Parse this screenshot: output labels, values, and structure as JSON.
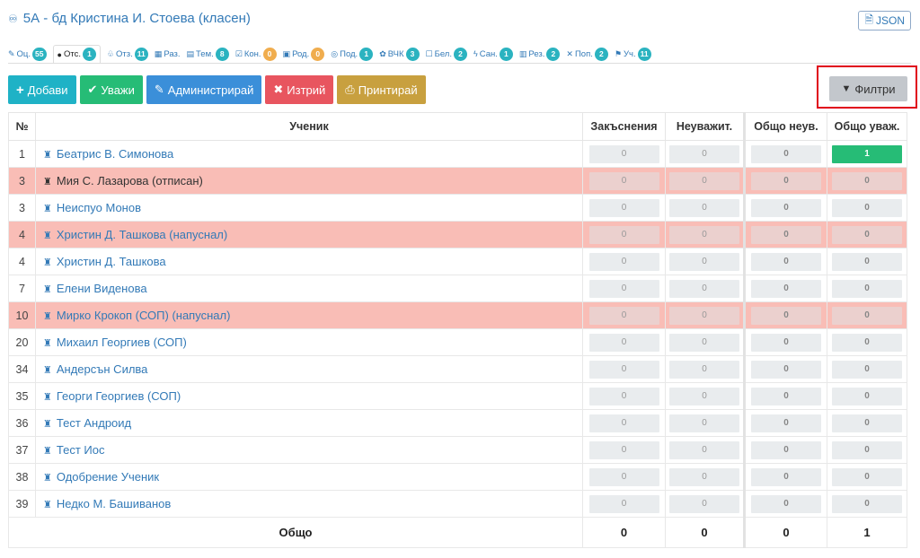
{
  "header": {
    "title": "5А - бд Кристина И. Стоева (класен)",
    "json_label": "JSON"
  },
  "tabs": [
    {
      "icon": "✎",
      "label": "Оц.",
      "badge": "55",
      "badge_color": "teal",
      "active": false
    },
    {
      "icon": "●",
      "label": "Отс.",
      "badge": "1",
      "badge_color": "teal",
      "active": true
    },
    {
      "icon": "♧",
      "label": "Отз.",
      "badge": "11",
      "badge_color": "teal",
      "active": false
    },
    {
      "icon": "▦",
      "label": "Раз.",
      "badge": "",
      "badge_color": "teal",
      "active": false
    },
    {
      "icon": "▤",
      "label": "Тем.",
      "badge": "8",
      "badge_color": "teal",
      "active": false
    },
    {
      "icon": "☑",
      "label": "Кон.",
      "badge": "0",
      "badge_color": "yellow",
      "active": false
    },
    {
      "icon": "▣",
      "label": "Род.",
      "badge": "0",
      "badge_color": "yellow",
      "active": false
    },
    {
      "icon": "◎",
      "label": "Под.",
      "badge": "1",
      "badge_color": "teal",
      "active": false
    },
    {
      "icon": "✿",
      "label": "ВЧК",
      "badge": "3",
      "badge_color": "teal",
      "active": false
    },
    {
      "icon": "☐",
      "label": "Бел.",
      "badge": "2",
      "badge_color": "teal",
      "active": false
    },
    {
      "icon": "ϟ",
      "label": "Сан.",
      "badge": "1",
      "badge_color": "teal",
      "active": false
    },
    {
      "icon": "▥",
      "label": "Рез.",
      "badge": "2",
      "badge_color": "teal",
      "active": false
    },
    {
      "icon": "✕",
      "label": "Поп.",
      "badge": "2",
      "badge_color": "teal",
      "active": false
    },
    {
      "icon": "⚑",
      "label": "Уч.",
      "badge": "11",
      "badge_color": "teal",
      "active": false
    }
  ],
  "toolbar": {
    "add": "Добави",
    "excuse": "Уважи",
    "admin": "Администрирай",
    "delete": "Изтрий",
    "print": "Принтирай",
    "filters": "Филтри"
  },
  "table": {
    "headers": {
      "num": "№",
      "student": "Ученик",
      "explanations": "Закъснения",
      "unexcused": "Неуважит.",
      "total_unexcused": "Общо неув.",
      "total_excused": "Общо уваж."
    },
    "rows": [
      {
        "num": "1",
        "name": "Беатрис В. Симонова",
        "pink": false,
        "dark": false,
        "v1": "0",
        "v2": "0",
        "v3": "0",
        "v4": "1",
        "v4_green": true
      },
      {
        "num": "3",
        "name": "Мия С. Лазарова (отписан)",
        "pink": true,
        "dark": true,
        "v1": "0",
        "v2": "0",
        "v3": "0",
        "v4": "0",
        "v4_green": false
      },
      {
        "num": "3",
        "name": "Неиспуо Монов",
        "pink": false,
        "dark": false,
        "v1": "0",
        "v2": "0",
        "v3": "0",
        "v4": "0",
        "v4_green": false
      },
      {
        "num": "4",
        "name": "Христин Д. Ташкова (напуснал)",
        "pink": true,
        "dark": false,
        "v1": "0",
        "v2": "0",
        "v3": "0",
        "v4": "0",
        "v4_green": false
      },
      {
        "num": "4",
        "name": "Христин Д. Ташкова",
        "pink": false,
        "dark": false,
        "v1": "0",
        "v2": "0",
        "v3": "0",
        "v4": "0",
        "v4_green": false
      },
      {
        "num": "7",
        "name": "Елени Виденова",
        "pink": false,
        "dark": false,
        "v1": "0",
        "v2": "0",
        "v3": "0",
        "v4": "0",
        "v4_green": false
      },
      {
        "num": "10",
        "name": "Мирко Крокоп (СОП) (напуснал)",
        "pink": true,
        "dark": false,
        "v1": "0",
        "v2": "0",
        "v3": "0",
        "v4": "0",
        "v4_green": false
      },
      {
        "num": "20",
        "name": "Михаил Георгиев (СОП)",
        "pink": false,
        "dark": false,
        "v1": "0",
        "v2": "0",
        "v3": "0",
        "v4": "0",
        "v4_green": false
      },
      {
        "num": "34",
        "name": "Андерсън Силва",
        "pink": false,
        "dark": false,
        "v1": "0",
        "v2": "0",
        "v3": "0",
        "v4": "0",
        "v4_green": false
      },
      {
        "num": "35",
        "name": "Георги Георгиев (СОП)",
        "pink": false,
        "dark": false,
        "v1": "0",
        "v2": "0",
        "v3": "0",
        "v4": "0",
        "v4_green": false
      },
      {
        "num": "36",
        "name": "Тест Андроид",
        "pink": false,
        "dark": false,
        "v1": "0",
        "v2": "0",
        "v3": "0",
        "v4": "0",
        "v4_green": false
      },
      {
        "num": "37",
        "name": "Тест Иос",
        "pink": false,
        "dark": false,
        "v1": "0",
        "v2": "0",
        "v3": "0",
        "v4": "0",
        "v4_green": false
      },
      {
        "num": "38",
        "name": "Одобрение Ученик",
        "pink": false,
        "dark": false,
        "v1": "0",
        "v2": "0",
        "v3": "0",
        "v4": "0",
        "v4_green": false
      },
      {
        "num": "39",
        "name": "Недко М. Башиванов",
        "pink": false,
        "dark": false,
        "v1": "0",
        "v2": "0",
        "v3": "0",
        "v4": "0",
        "v4_green": false
      }
    ],
    "total": {
      "label": "Общо",
      "v1": "0",
      "v2": "0",
      "v3": "0",
      "v4": "1"
    }
  },
  "colors": {
    "accent": "#337ab7",
    "pink_row": "#f9bdb6",
    "green": "#26bc76",
    "highlight_box": "#e0001b"
  }
}
